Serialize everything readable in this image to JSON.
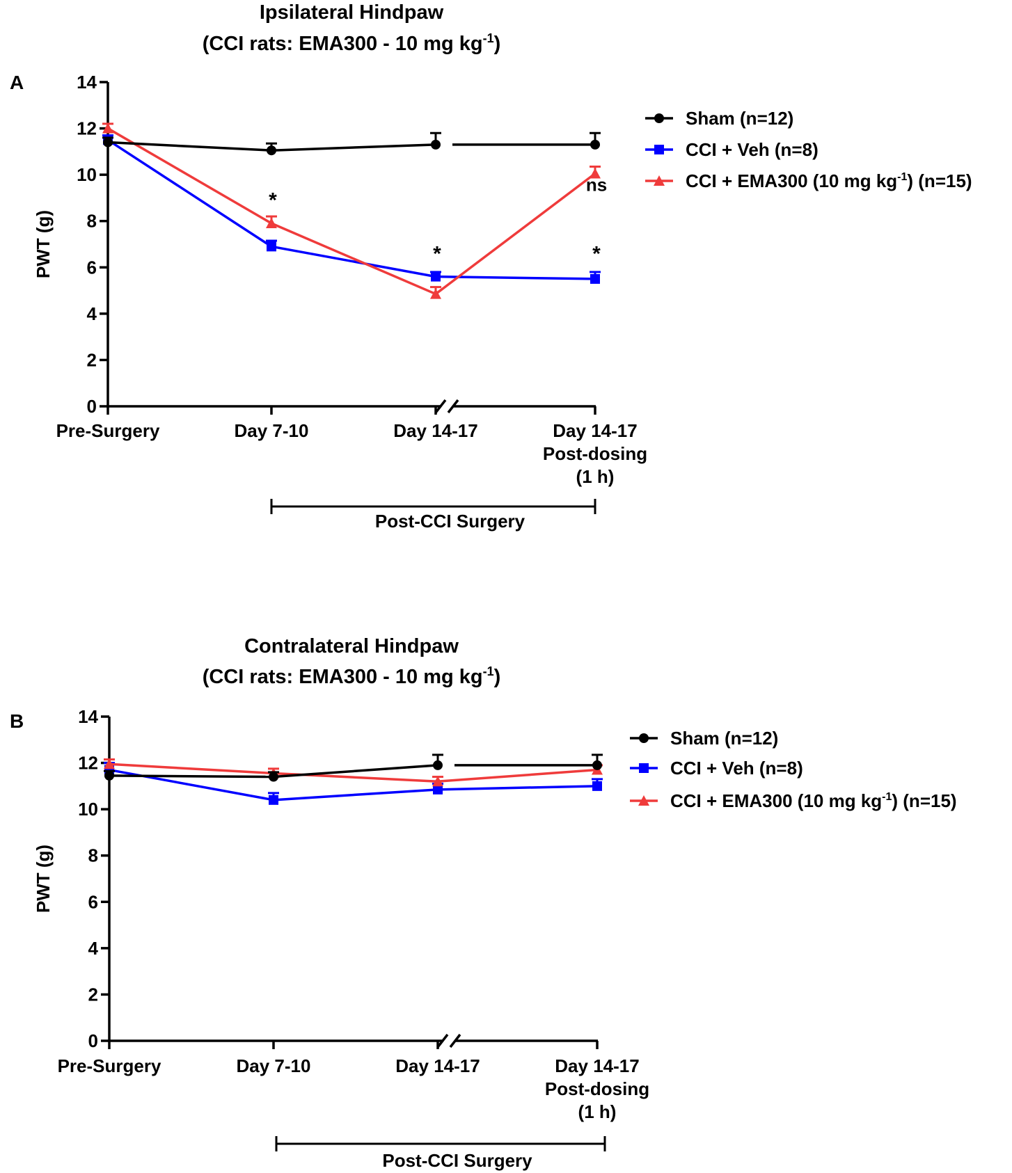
{
  "chart_data": [
    {
      "type": "line",
      "panel_label": "A",
      "title": "Ipsilateral Hindpaw",
      "subtitle_prefix": "(CCI rats: EMA300 - 10 mg kg",
      "subtitle_sup": "-1",
      "subtitle_suffix": ")",
      "ylabel": "PWT (g)",
      "ylim": [
        0,
        14
      ],
      "yticks": [
        "0",
        "2",
        "4",
        "6",
        "8",
        "10",
        "12",
        "14"
      ],
      "categories": [
        "Pre-Surgery",
        "Day 7-10",
        "Day 14-17",
        "Day 14-17\nPost-dosing\n(1 h)"
      ],
      "axis_break_after_category": 2,
      "bracket_label": "Post-CCI Surgery",
      "series": [
        {
          "name": "Sham (n=12)",
          "color": "#000000",
          "marker": "circle",
          "values": [
            11.4,
            11.05,
            11.3,
            11.3
          ],
          "errors": [
            0.2,
            0.3,
            0.5,
            0.5
          ]
        },
        {
          "name": "CCI + Veh (n=8)",
          "color": "#0000ff",
          "marker": "square",
          "values": [
            11.5,
            6.9,
            5.6,
            5.5
          ],
          "errors": [
            0.2,
            0.25,
            0.2,
            0.3
          ]
        },
        {
          "name_prefix": "CCI + EMA300 (10 mg kg",
          "name_sup": "-1",
          "name_suffix": ") (n=15)",
          "color": "#ef3b3b",
          "marker": "triangle",
          "values": [
            12.0,
            7.9,
            4.85,
            10.05
          ],
          "errors": [
            0.2,
            0.3,
            0.3,
            0.3
          ]
        }
      ],
      "annotations": [
        {
          "category": 1,
          "value": 8.6,
          "text": "*"
        },
        {
          "category": 2,
          "value": 6.3,
          "text": "*"
        },
        {
          "category": 3,
          "value": 9.3,
          "text": "ns"
        },
        {
          "category": 3,
          "value": 6.3,
          "text": "*"
        }
      ]
    },
    {
      "type": "line",
      "panel_label": "B",
      "title": "Contralateral Hindpaw",
      "subtitle_prefix": "(CCI rats: EMA300 - 10 mg kg",
      "subtitle_sup": "-1",
      "subtitle_suffix": ")",
      "ylabel": "PWT (g)",
      "ylim": [
        0,
        14
      ],
      "yticks": [
        "0",
        "2",
        "4",
        "6",
        "8",
        "10",
        "12",
        "14"
      ],
      "categories": [
        "Pre-Surgery",
        "Day 7-10",
        "Day 14-17",
        "Day 14-17\nPost-dosing\n(1 h)"
      ],
      "axis_break_after_category": 2,
      "bracket_label": "Post-CCI Surgery",
      "series": [
        {
          "name": "Sham (n=12)",
          "color": "#000000",
          "marker": "circle",
          "values": [
            11.45,
            11.4,
            11.9,
            11.9
          ],
          "errors": [
            0.2,
            0.2,
            0.45,
            0.45
          ]
        },
        {
          "name": "CCI + Veh (n=8)",
          "color": "#0000ff",
          "marker": "square",
          "values": [
            11.7,
            10.4,
            10.85,
            11.0
          ],
          "errors": [
            0.3,
            0.3,
            0.25,
            0.3
          ]
        },
        {
          "name_prefix": "CCI + EMA300 (10 mg kg",
          "name_sup": "-1",
          "name_suffix": ") (n=15)",
          "color": "#ef3b3b",
          "marker": "triangle",
          "values": [
            11.95,
            11.55,
            11.2,
            11.7
          ],
          "errors": [
            0.2,
            0.2,
            0.2,
            0.2
          ]
        }
      ],
      "annotations": []
    }
  ]
}
